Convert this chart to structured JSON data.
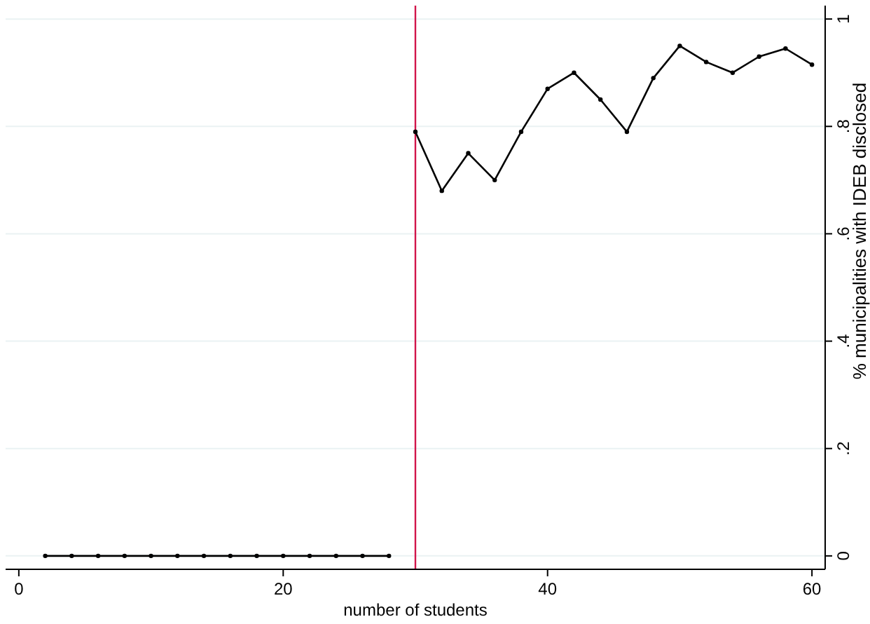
{
  "chart_data": {
    "type": "line",
    "xlabel": "number of students",
    "ylabel": "% municipalities with IDEB disclosed",
    "series": [
      {
        "color": "#000000",
        "x": [
          2,
          4,
          6,
          8,
          10,
          12,
          14,
          16,
          18,
          20,
          22,
          24,
          26,
          28
        ],
        "values": [
          0,
          0,
          0,
          0,
          0,
          0,
          0,
          0,
          0,
          0,
          0,
          0,
          0,
          0
        ]
      },
      {
        "color": "#000000",
        "x": [
          30,
          32,
          34,
          36,
          38,
          40,
          42,
          44,
          46,
          48,
          50,
          52,
          54,
          56,
          58,
          60
        ],
        "values": [
          0.79,
          0.68,
          0.75,
          0.7,
          0.79,
          0.87,
          0.9,
          0.85,
          0.79,
          0.89,
          0.95,
          0.92,
          0.9,
          0.93,
          0.945,
          0.915
        ]
      }
    ],
    "xlim": [
      -1,
      61
    ],
    "xticks": [
      0,
      20,
      40,
      60
    ],
    "ylim": [
      -0.025,
      1.025
    ],
    "yticks": [
      0,
      {
        "value": 0.2,
        "label": ".2"
      },
      {
        "value": 0.4,
        "label": ".4"
      },
      {
        "value": 0.6,
        "label": ".6"
      },
      {
        "value": 0.8,
        "label": ".8"
      },
      1
    ],
    "grid": "y",
    "marker": "circle",
    "line_style": "solid",
    "ref_lines": [
      {
        "axis": "x",
        "value": 30,
        "color": "#d1154a"
      }
    ]
  }
}
